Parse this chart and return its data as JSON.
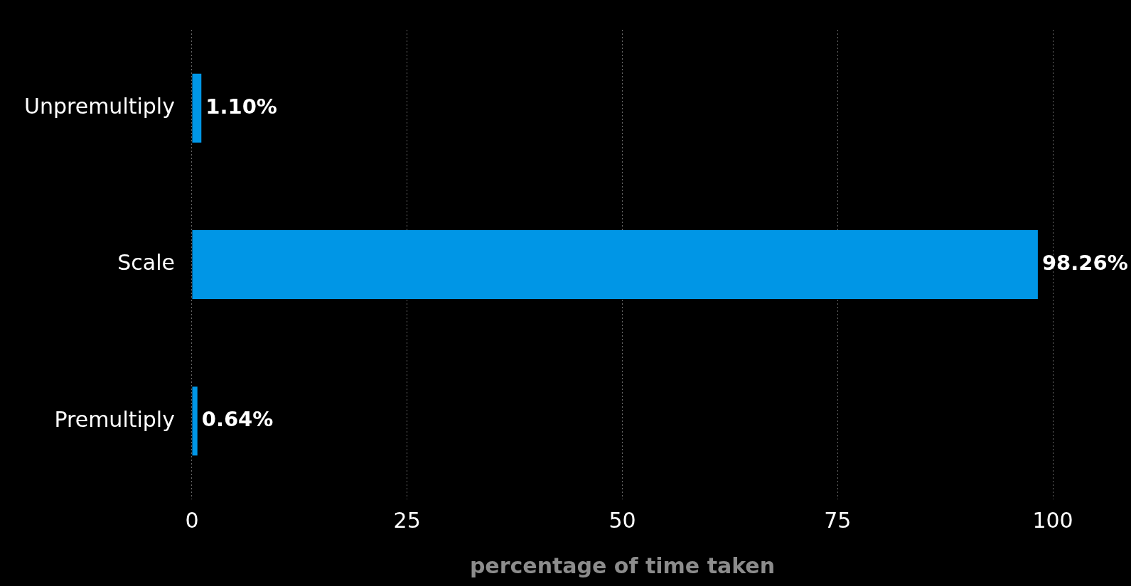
{
  "chart_data": {
    "type": "bar",
    "orientation": "horizontal",
    "xlabel": "percentage of time taken",
    "categories": [
      "Unpremultiply",
      "Scale",
      "Premultiply"
    ],
    "values": [
      1.1,
      98.26,
      0.64
    ],
    "value_labels": [
      "1.10%",
      "98.26%",
      "0.64%"
    ],
    "color": "#0096e6",
    "xlim": [
      0,
      100
    ],
    "xticks": [
      0,
      25,
      50,
      75,
      100
    ],
    "grid": "x",
    "legend": false
  }
}
